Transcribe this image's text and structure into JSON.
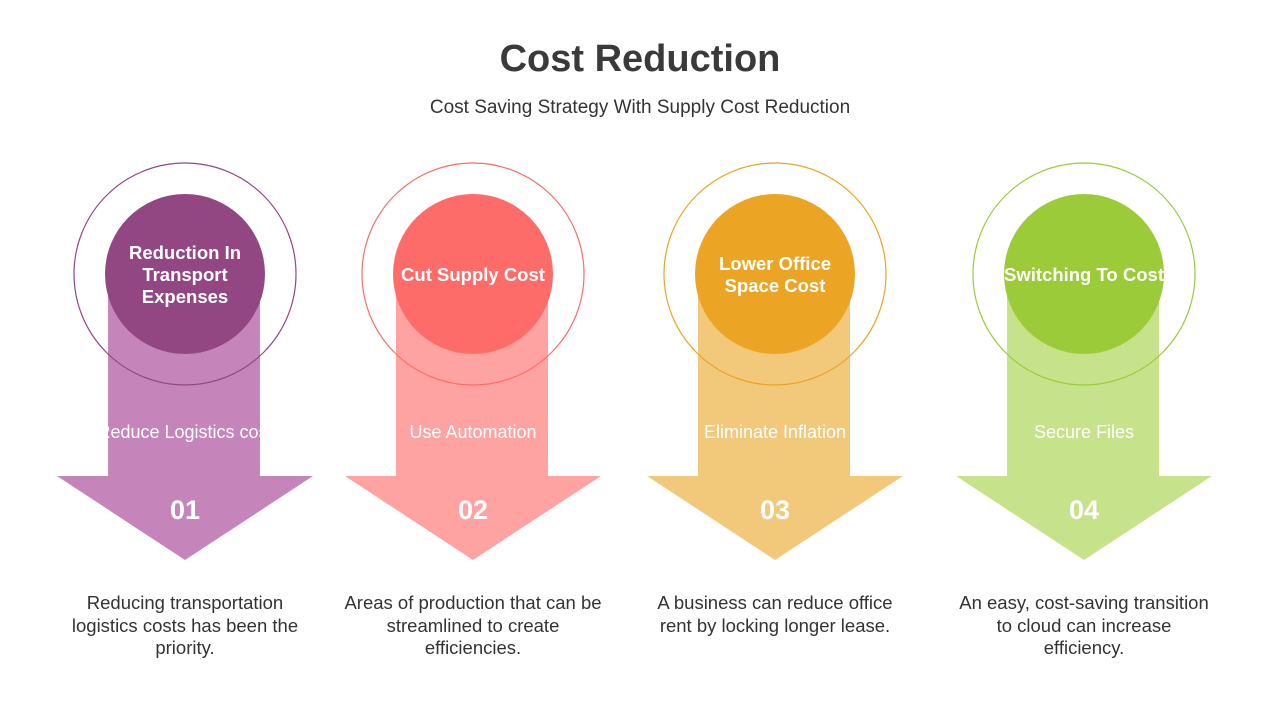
{
  "title": "Cost Reduction",
  "subtitle": "Cost Saving Strategy With Supply Cost Reduction",
  "steps": [
    {
      "heading": "Reduction In Transport Expenses",
      "sub": "Reduce Logistics cost",
      "number": "01",
      "description": "Reducing transportation logistics costs has been the priority.",
      "colors": {
        "circle": "#924783",
        "arrow": "#c584ba",
        "ring": "#924783"
      }
    },
    {
      "heading": "Cut Supply Cost",
      "sub": "Use Automation",
      "number": "02",
      "description": "Areas of production that can be streamlined to create efficiencies.",
      "colors": {
        "circle": "#fd6c68",
        "arrow": "#fea3a1",
        "ring": "#fd6c68"
      }
    },
    {
      "heading": "Lower Office Space Cost",
      "sub": "Eliminate Inflation",
      "number": "03",
      "description": "A business can reduce office rent by locking longer lease.",
      "colors": {
        "circle": "#eba423",
        "arrow": "#f2c87a",
        "ring": "#eba423"
      }
    },
    {
      "heading": "Switching To Cost",
      "sub": "Secure Files",
      "number": "04",
      "description": "An easy, cost-saving transition to cloud can increase efficiency.",
      "colors": {
        "circle": "#9ccb3a",
        "arrow": "#c6e38b",
        "ring": "#9ccb3a"
      }
    }
  ]
}
